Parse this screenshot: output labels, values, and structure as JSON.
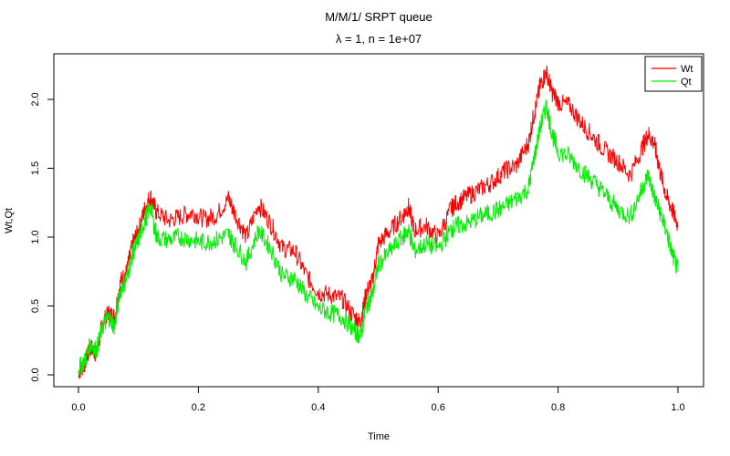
{
  "chart_data": {
    "type": "line",
    "title": "M/M/1/ SRPT queue",
    "subtitle": "λ = 1, n = 1e+07",
    "xlabel": "Time",
    "ylabel": "Wt,Qt",
    "xlim": [
      0.0,
      1.0
    ],
    "ylim": [
      0.0,
      2.2
    ],
    "xticks": [
      "0.0",
      "0.2",
      "0.4",
      "0.6",
      "0.8",
      "1.0"
    ],
    "yticks": [
      "0.0",
      "0.5",
      "1.0",
      "1.5",
      "2.0"
    ],
    "legend_position": "top-right",
    "grid": false,
    "series": [
      {
        "name": "Wt",
        "color": "#ff0000",
        "x": [
          0.0,
          0.01,
          0.02,
          0.03,
          0.04,
          0.05,
          0.06,
          0.07,
          0.08,
          0.09,
          0.1,
          0.11,
          0.12,
          0.13,
          0.15,
          0.17,
          0.19,
          0.21,
          0.23,
          0.25,
          0.26,
          0.28,
          0.3,
          0.32,
          0.34,
          0.36,
          0.38,
          0.4,
          0.42,
          0.44,
          0.46,
          0.47,
          0.48,
          0.49,
          0.5,
          0.52,
          0.54,
          0.55,
          0.56,
          0.58,
          0.6,
          0.62,
          0.63,
          0.65,
          0.67,
          0.69,
          0.71,
          0.73,
          0.75,
          0.76,
          0.77,
          0.78,
          0.79,
          0.8,
          0.82,
          0.84,
          0.86,
          0.88,
          0.9,
          0.92,
          0.94,
          0.95,
          0.96,
          0.97,
          0.98,
          0.99,
          1.0
        ],
        "values": [
          0.02,
          0.08,
          0.2,
          0.15,
          0.38,
          0.45,
          0.42,
          0.68,
          0.75,
          0.95,
          1.05,
          1.2,
          1.3,
          1.18,
          1.12,
          1.15,
          1.18,
          1.13,
          1.16,
          1.28,
          1.18,
          1.0,
          1.24,
          1.1,
          0.92,
          0.9,
          0.72,
          0.6,
          0.58,
          0.55,
          0.42,
          0.38,
          0.6,
          0.68,
          0.95,
          1.05,
          1.15,
          1.22,
          1.05,
          1.08,
          1.0,
          1.2,
          1.25,
          1.3,
          1.35,
          1.4,
          1.48,
          1.52,
          1.68,
          1.9,
          2.1,
          2.2,
          2.05,
          1.98,
          1.95,
          1.82,
          1.72,
          1.62,
          1.55,
          1.45,
          1.65,
          1.75,
          1.68,
          1.48,
          1.3,
          1.2,
          1.08
        ]
      },
      {
        "name": "Qt",
        "color": "#00ee00",
        "x": [
          0.0,
          0.01,
          0.02,
          0.03,
          0.04,
          0.05,
          0.06,
          0.07,
          0.08,
          0.09,
          0.1,
          0.11,
          0.12,
          0.13,
          0.15,
          0.17,
          0.19,
          0.21,
          0.23,
          0.25,
          0.26,
          0.28,
          0.3,
          0.32,
          0.34,
          0.36,
          0.38,
          0.4,
          0.42,
          0.44,
          0.46,
          0.47,
          0.48,
          0.49,
          0.5,
          0.52,
          0.54,
          0.55,
          0.56,
          0.58,
          0.6,
          0.62,
          0.63,
          0.65,
          0.67,
          0.69,
          0.71,
          0.73,
          0.75,
          0.76,
          0.77,
          0.78,
          0.79,
          0.8,
          0.82,
          0.84,
          0.86,
          0.88,
          0.9,
          0.92,
          0.94,
          0.95,
          0.96,
          0.97,
          0.98,
          0.99,
          1.0
        ],
        "values": [
          0.05,
          0.1,
          0.22,
          0.18,
          0.35,
          0.42,
          0.35,
          0.62,
          0.7,
          0.88,
          0.98,
          1.12,
          1.22,
          1.0,
          0.98,
          1.0,
          0.98,
          0.96,
          0.98,
          1.02,
          0.95,
          0.82,
          1.05,
          0.92,
          0.72,
          0.7,
          0.58,
          0.48,
          0.45,
          0.42,
          0.32,
          0.28,
          0.5,
          0.58,
          0.8,
          0.9,
          1.0,
          1.05,
          0.9,
          0.95,
          0.92,
          1.05,
          1.08,
          1.1,
          1.15,
          1.18,
          1.22,
          1.28,
          1.35,
          1.58,
          1.8,
          1.95,
          1.75,
          1.62,
          1.58,
          1.48,
          1.4,
          1.3,
          1.2,
          1.15,
          1.35,
          1.45,
          1.3,
          1.18,
          1.05,
          0.88,
          0.75
        ]
      }
    ]
  }
}
